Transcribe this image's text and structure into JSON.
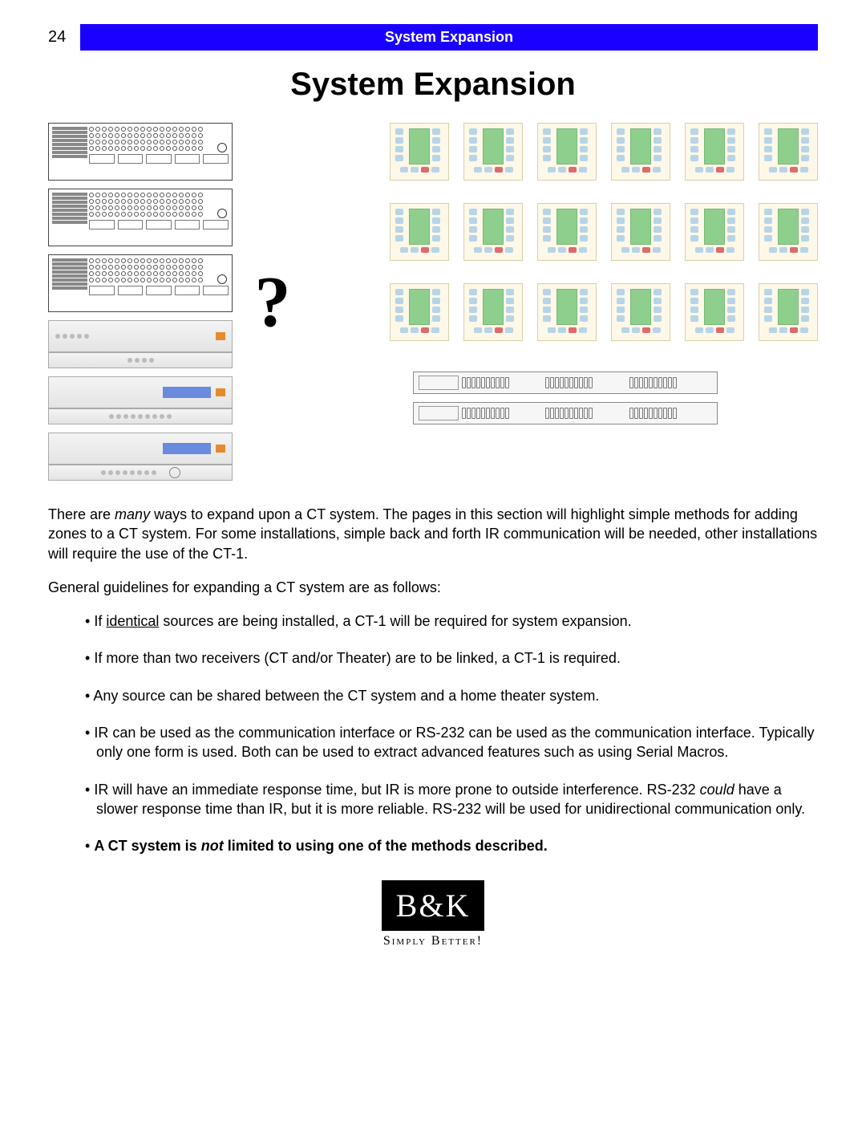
{
  "page_number": "24",
  "header_bar": "System Expansion",
  "title": "System Expansion",
  "colors": {
    "header_bg": "#1a00ff",
    "header_text": "#ffffff",
    "keypad_bg": "#fdf8e8",
    "keypad_border": "#d9d0a8",
    "keypad_screen": "#8ecf8e",
    "keypad_btn": "#b8d4e8",
    "keypad_btn_red": "#e06a6a",
    "fp_display": "#6a8add",
    "fp_orange": "#e68a2e",
    "logo_bg": "#000000",
    "logo_text": "#ffffff"
  },
  "diagram": {
    "qmark": "?",
    "backpanel_count": 3,
    "frontpanel_count": 3,
    "keypad_rows": 3,
    "keypad_cols": 6,
    "rack_count": 2
  },
  "paragraphs": {
    "intro_1a": "There are ",
    "intro_1b_italic": "many",
    "intro_1c": " ways to expand upon a CT system.  The pages in this section will highlight simple methods for adding zones to a CT system.   For some installations, simple back and forth IR communication will be needed, other installations will require the use of the CT-1.",
    "intro_2": "General guidelines for expanding a CT system are as follows:"
  },
  "bullets": [
    {
      "pre": "If ",
      "u": "identical",
      "post": " sources are being installed, a CT-1 will be required for system expansion."
    },
    {
      "text": "If more than two receivers (CT and/or Theater) are to be linked, a CT-1 is required."
    },
    {
      "text": "Any source can be shared between the CT system and a home theater system."
    },
    {
      "text": "IR can be used as the communication interface or RS-232 can be used as the communication interface. Typically only one form is used.  Both can be used to extract advanced features such as using Serial Macros."
    },
    {
      "pre": "IR will have an immediate response time, but IR is more prone to outside interference.  RS-232 ",
      "i": "could",
      "post": " have a slower response time than IR, but it is more reliable. RS-232 will be used for unidirectional communication only."
    },
    {
      "bold_pre": "A CT system is ",
      "bold_i": "not",
      "bold_post": " limited to using one of the methods described."
    }
  ],
  "logo": {
    "top": "B&K",
    "bottom": "Simply Better!"
  }
}
